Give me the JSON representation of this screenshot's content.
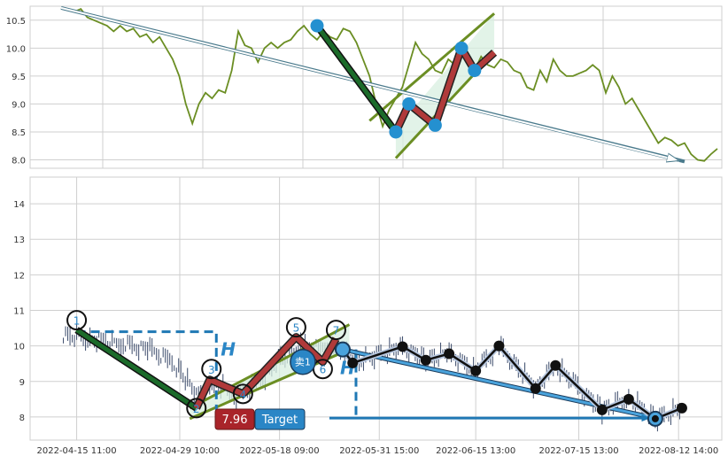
{
  "chart_data": [
    {
      "type": "line",
      "panel": "top",
      "y_ticks": [
        "8.0",
        "8.5",
        "9.0",
        "9.5",
        "10.0",
        "10.5"
      ],
      "ylim": [
        7.85,
        10.75
      ],
      "x_index_range": [
        0,
        100
      ],
      "price_series": {
        "color": "#6b8e23",
        "x": [
          0,
          2,
          3,
          4,
          5,
          6,
          7,
          8,
          9,
          10,
          11,
          12,
          13,
          14,
          15,
          16,
          17,
          18,
          19,
          20,
          21,
          22,
          23,
          24,
          25,
          26,
          27,
          28,
          29,
          30,
          31,
          32,
          33,
          34,
          35,
          36,
          37,
          38,
          39,
          40,
          41,
          42,
          43,
          44,
          45,
          46,
          47,
          48,
          49,
          50,
          51,
          52,
          53,
          54,
          55,
          56,
          57,
          58,
          59,
          60,
          61,
          62,
          63,
          64,
          65,
          66,
          67,
          68,
          69,
          70,
          71,
          72,
          73,
          74,
          75,
          76,
          77,
          78,
          79,
          80,
          81,
          82,
          83,
          84,
          85,
          86,
          87,
          88,
          89,
          90,
          91,
          92,
          93,
          94,
          95,
          96,
          97,
          98,
          99,
          100
        ],
        "y": [
          10.72,
          10.65,
          10.7,
          10.55,
          10.5,
          10.45,
          10.4,
          10.3,
          10.4,
          10.3,
          10.35,
          10.2,
          10.25,
          10.1,
          10.2,
          10.0,
          9.8,
          9.5,
          9.0,
          8.65,
          9.0,
          9.2,
          9.1,
          9.25,
          9.2,
          9.6,
          10.3,
          10.05,
          10.0,
          9.75,
          10.0,
          10.1,
          10.0,
          10.1,
          10.15,
          10.3,
          10.4,
          10.25,
          10.15,
          10.3,
          10.2,
          10.15,
          10.35,
          10.3,
          10.1,
          9.8,
          9.5,
          9.0,
          8.6,
          8.9,
          9.1,
          9.3,
          9.7,
          10.1,
          9.9,
          9.8,
          9.6,
          9.55,
          9.8,
          9.7,
          9.9,
          9.8,
          9.6,
          9.85,
          9.7,
          9.65,
          9.8,
          9.75,
          9.6,
          9.55,
          9.3,
          9.25,
          9.6,
          9.4,
          9.8,
          9.6,
          9.5,
          9.5,
          9.55,
          9.6,
          9.7,
          9.6,
          9.2,
          9.5,
          9.3,
          9.0,
          9.1,
          8.9,
          8.7,
          8.5,
          8.3,
          8.4,
          8.35,
          8.25,
          8.3,
          8.1,
          8.0,
          7.98,
          8.1,
          8.2
        ]
      },
      "wave_points": {
        "x": [
          39,
          51,
          53,
          57,
          61,
          63,
          66
        ],
        "y": [
          10.4,
          8.5,
          9.0,
          8.62,
          10.0,
          9.6,
          9.92
        ]
      },
      "channel": {
        "lower": [
          [
            51,
            8.03
          ],
          [
            66,
            9.92
          ]
        ],
        "upper": [
          [
            47,
            8.7
          ],
          [
            60,
            10.55
          ],
          [
            66,
            10.62
          ]
        ]
      },
      "trend_arrow": {
        "from": [
          0,
          10.72
        ],
        "to": [
          95,
          7.97
        ]
      }
    },
    {
      "type": "line",
      "panel": "bottom",
      "y_ticks": [
        "8",
        "9",
        "10",
        "11",
        "12",
        "13",
        "14"
      ],
      "ylim": [
        7.35,
        14.75
      ],
      "x_ticks": [
        "2022-04-15 11:00",
        "2022-04-29 10:00",
        "2022-05-18 09:00",
        "2022-05-31 15:00",
        "2022-06-15 13:00",
        "2022-07-15 13:00",
        "2022-08-12 14:00"
      ],
      "x_tick_index": [
        7,
        22.5,
        37.5,
        52.5,
        67,
        82.5,
        97.5
      ],
      "x_index_range": [
        0,
        104
      ],
      "wave_labels": [
        "1",
        "2",
        "3",
        "4",
        "5",
        "6",
        "7"
      ],
      "wave_points": {
        "x": [
          7,
          25,
          27,
          32,
          40,
          44,
          46
        ],
        "y": [
          10.45,
          8.25,
          9.05,
          8.65,
          10.25,
          9.55,
          10.2
        ]
      },
      "black_path": {
        "x": [
          47,
          48.5,
          56,
          59.5,
          63,
          67,
          70.5,
          76,
          79,
          86,
          90,
          94,
          98
        ],
        "y": [
          9.9,
          9.52,
          9.98,
          9.6,
          9.78,
          9.3,
          10.0,
          8.8,
          9.45,
          8.2,
          8.5,
          7.95,
          8.25
        ]
      },
      "trend_arrow": {
        "from": [
          47,
          9.9
        ],
        "to": [
          94,
          7.97
        ]
      },
      "target_arrow": {
        "from": [
          45,
          7.97
        ],
        "to": [
          93,
          7.97
        ]
      },
      "h_marker": {
        "x": 28,
        "top": 10.4,
        "bottom": 8.2,
        "label": "H"
      },
      "h_marker_2": {
        "x": 49,
        "top": 9.9,
        "bottom": 7.97,
        "label": "H"
      },
      "sell_signal": {
        "x": 41,
        "y": 9.55,
        "label": "卖1"
      },
      "target_value": "7.96",
      "target_label": "Target"
    }
  ],
  "colors": {
    "grid": "#cfcfcf",
    "axis_text": "#333333",
    "price": "#6b8e23",
    "wave_down": "#1b6b2a",
    "wave_up": "#b03a3a",
    "channel": "#6b8e23",
    "wave_dot": "#2490d0",
    "black_dot": "#111111",
    "target_box": "#a9242a",
    "target_label_bg": "#2a86c6",
    "blue": "#1f78b4",
    "h_text": "#2a86c6"
  }
}
